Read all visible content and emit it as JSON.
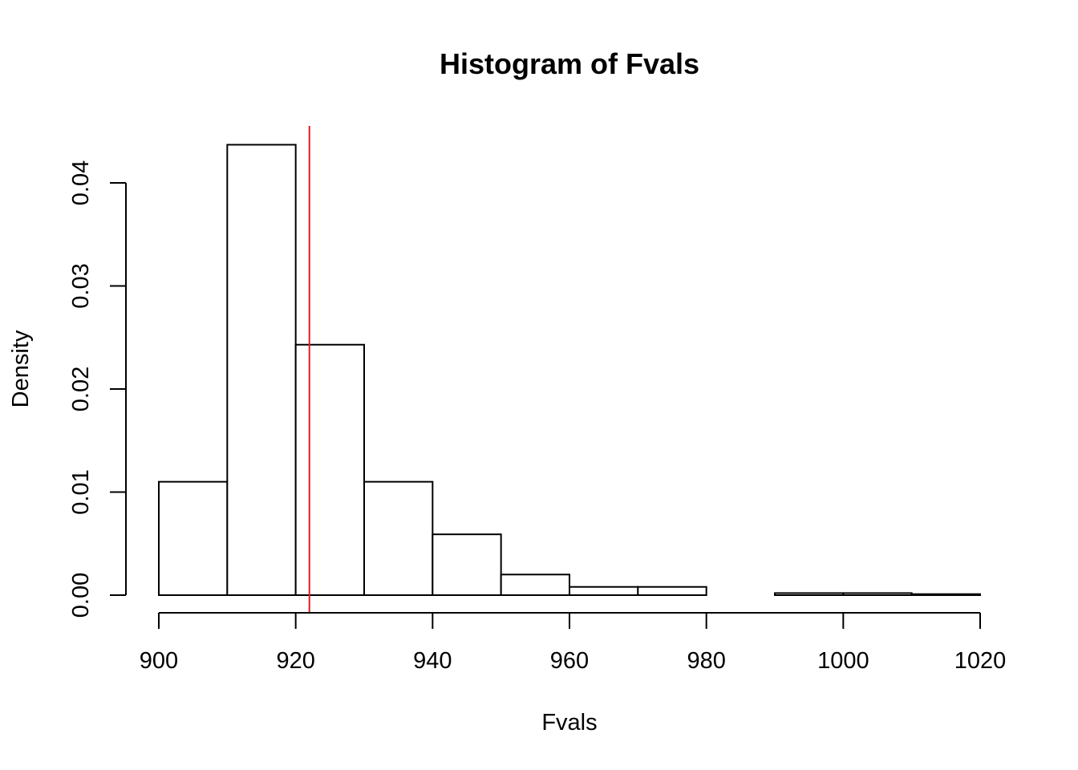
{
  "chart_data": {
    "type": "bar",
    "title": "Histogram of Fvals",
    "xlabel": "Fvals",
    "ylabel": "Density",
    "bin_edges": [
      900,
      910,
      920,
      930,
      940,
      950,
      960,
      970,
      980,
      990,
      1000,
      1010,
      1020
    ],
    "values": [
      0.011,
      0.0437,
      0.0243,
      0.011,
      0.0059,
      0.002,
      0.0008,
      0.0008,
      0.0,
      0.0002,
      0.0002,
      0.0001
    ],
    "xlim": [
      900,
      1020
    ],
    "ylim": [
      0,
      0.0455
    ],
    "x_ticks": [
      900,
      920,
      940,
      960,
      980,
      1000,
      1020
    ],
    "x_tick_labels": [
      "900",
      "920",
      "940",
      "960",
      "980",
      "1000",
      "1020"
    ],
    "y_ticks": [
      0,
      0.01,
      0.02,
      0.03,
      0.04
    ],
    "y_tick_labels": [
      "0.00",
      "0.01",
      "0.02",
      "0.03",
      "0.04"
    ],
    "reference_line": {
      "x": 922,
      "color": "#e31a1c"
    },
    "bar_fill": "#ffffff",
    "bar_stroke": "#000000",
    "grid": false,
    "legend": "none"
  }
}
